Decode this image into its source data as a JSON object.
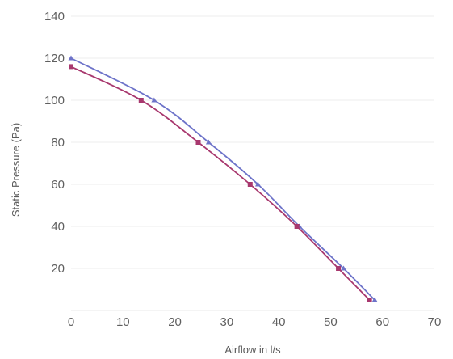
{
  "chart_data": {
    "type": "line",
    "title": "",
    "xlabel": "Airflow in l/s",
    "ylabel": "Static Pressure (Pa)",
    "xlim": [
      0,
      70
    ],
    "ylim": [
      0,
      140
    ],
    "x_ticks": [
      "0",
      "10",
      "20",
      "30",
      "40",
      "50",
      "60",
      "70"
    ],
    "y_ticks": [
      "20",
      "40",
      "60",
      "80",
      "100",
      "120",
      "140"
    ],
    "grid": true,
    "series": [
      {
        "color": "#6d73c9",
        "marker": "triangle",
        "points": [
          [
            0,
            120
          ],
          [
            16,
            100
          ],
          [
            26.5,
            80
          ],
          [
            36,
            60
          ],
          [
            44,
            40
          ],
          [
            52.5,
            20
          ],
          [
            58.5,
            5
          ]
        ]
      },
      {
        "color": "#a8386e",
        "marker": "square",
        "points": [
          [
            0,
            116
          ],
          [
            13.5,
            100
          ],
          [
            24.5,
            80
          ],
          [
            34.5,
            60
          ],
          [
            43.5,
            40
          ],
          [
            51.5,
            20
          ],
          [
            57.5,
            5
          ]
        ]
      }
    ]
  }
}
